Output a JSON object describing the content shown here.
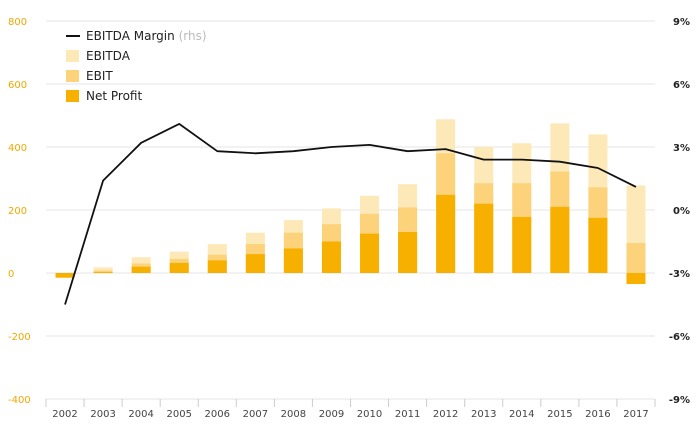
{
  "chart_data": {
    "type": "bar",
    "stacked_overlay": true,
    "categories": [
      "2002",
      "2003",
      "2004",
      "2005",
      "2006",
      "2007",
      "2008",
      "2009",
      "2010",
      "2011",
      "2012",
      "2013",
      "2014",
      "2015",
      "2016",
      "2017"
    ],
    "series": [
      {
        "name": "EBITDA",
        "values": [
          -5,
          18,
          50,
          68,
          92,
          128,
          168,
          205,
          245,
          282,
          488,
          400,
          412,
          475,
          440,
          278
        ],
        "color": "#fde9b8"
      },
      {
        "name": "EBIT",
        "values": [
          -8,
          8,
          30,
          45,
          58,
          92,
          128,
          155,
          188,
          208,
          380,
          285,
          285,
          322,
          272,
          95
        ],
        "color": "#fcd27a"
      },
      {
        "name": "Net Profit",
        "values": [
          -15,
          3,
          20,
          32,
          40,
          60,
          78,
          100,
          125,
          130,
          248,
          220,
          178,
          210,
          175,
          -35
        ],
        "color": "#f7b000"
      }
    ],
    "line": {
      "name": "EBITDA Margin",
      "axis_note": "(rhs)",
      "values": [
        -4.5,
        1.4,
        3.2,
        4.1,
        2.8,
        2.7,
        2.8,
        3.0,
        3.1,
        2.8,
        2.9,
        2.4,
        2.4,
        2.3,
        2.0,
        1.1
      ],
      "color": "#111111"
    },
    "y_left": {
      "ylim": [
        -400,
        800
      ],
      "ticks": [
        "800",
        "600",
        "400",
        "200",
        "0",
        "-200",
        "-400"
      ],
      "tick_values": [
        800,
        600,
        400,
        200,
        0,
        -200,
        -400
      ]
    },
    "y_right": {
      "ylim": [
        -9,
        9
      ],
      "ticks": [
        "9%",
        "6%",
        "3%",
        "0%",
        "-3%",
        "-6%",
        "-9%"
      ],
      "tick_values": [
        9,
        6,
        3,
        0,
        -3,
        -6,
        -9
      ]
    },
    "legend_position": "top-left",
    "grid": true
  }
}
